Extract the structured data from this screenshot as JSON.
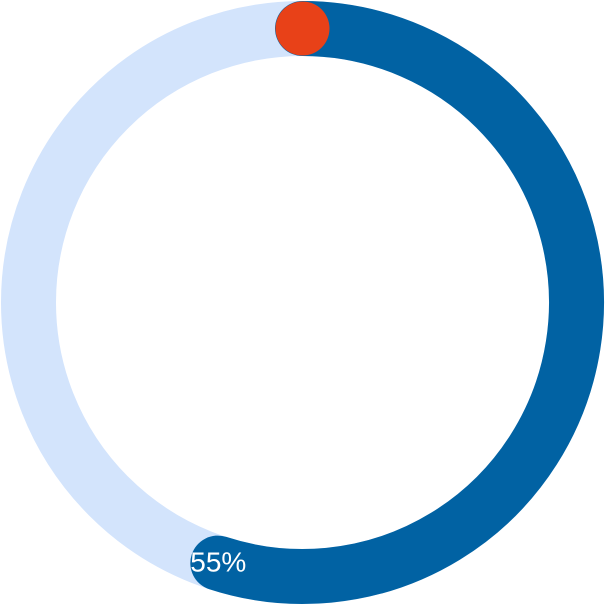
{
  "progress": {
    "value": 0.55,
    "label": "55%"
  },
  "colors": {
    "track": "#d3e4fc",
    "progress": "#0162a3",
    "marker": "#e84118",
    "label": "#ffffff"
  },
  "icons": {
    "marker": "start-marker-dot"
  }
}
